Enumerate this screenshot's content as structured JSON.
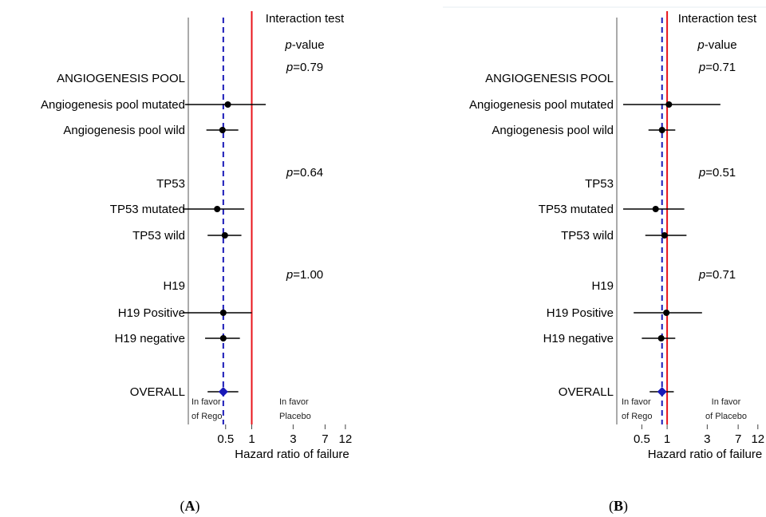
{
  "header": {
    "interaction_test": "Interaction test",
    "p_value_italic": "p",
    "p_value_suffix": "-value"
  },
  "x_axis": {
    "label": "Hazard ratio of failure",
    "ticks": [
      "0.5",
      "1",
      "3",
      "7",
      "12"
    ]
  },
  "notes": {
    "favor_rego": [
      "In favor",
      "of Rego"
    ],
    "favor_placebo_A": [
      "In favor",
      "Placebo"
    ],
    "favor_placebo_B": [
      "In favor",
      "of Placebo"
    ]
  },
  "colors": {
    "reference_line": "#e8141b",
    "overall_line": "#1a1ab8",
    "overall_marker": "#1a1ab8",
    "point": "#000000"
  },
  "chart_data": [
    {
      "type": "forest",
      "panel": "(A)",
      "panel_letter": "A",
      "xlabel": "Hazard ratio of failure",
      "x_scale": "log",
      "x_ticks": [
        0.5,
        1,
        3,
        7,
        12
      ],
      "reference_value": 1,
      "overall_reference": 0.47,
      "rows": [
        {
          "label": "ANGIOGENESIS POOL",
          "kind": "header",
          "p_value": "=0.79"
        },
        {
          "label": "Angiogenesis pool mutated",
          "kind": "estimate",
          "hr": 0.53,
          "lo": 0.17,
          "hi": 1.45
        },
        {
          "label": "Angiogenesis pool wild",
          "kind": "estimate",
          "hr": 0.46,
          "lo": 0.3,
          "hi": 0.7
        },
        {
          "label": "TP53",
          "kind": "header",
          "p_value": "=0.64"
        },
        {
          "label": "TP53 mutated",
          "kind": "estimate",
          "hr": 0.4,
          "lo": 0.16,
          "hi": 0.82
        },
        {
          "label": "TP53 wild",
          "kind": "estimate",
          "hr": 0.49,
          "lo": 0.31,
          "hi": 0.76
        },
        {
          "label": "H19",
          "kind": "header",
          "p_value": "=1.00"
        },
        {
          "label": "H19 Positive",
          "kind": "estimate",
          "hr": 0.47,
          "lo": 0.16,
          "hi": 1.0
        },
        {
          "label": "H19 negative",
          "kind": "estimate",
          "hr": 0.47,
          "lo": 0.29,
          "hi": 0.73
        },
        {
          "label": "OVERALL",
          "kind": "overall",
          "hr": 0.47,
          "lo": 0.31,
          "hi": 0.7
        }
      ]
    },
    {
      "type": "forest",
      "panel": "(B)",
      "panel_letter": "B",
      "xlabel": "Hazard ratio of failure",
      "x_scale": "log",
      "x_ticks": [
        0.5,
        1,
        3,
        7,
        12
      ],
      "reference_value": 1,
      "overall_reference": 0.87,
      "rows": [
        {
          "label": "ANGIOGENESIS POOL",
          "kind": "header",
          "p_value": "=0.71"
        },
        {
          "label": "Angiogenesis pool mutated",
          "kind": "estimate",
          "hr": 1.05,
          "lo": 0.3,
          "hi": 4.3
        },
        {
          "label": "Angiogenesis pool wild",
          "kind": "estimate",
          "hr": 0.87,
          "lo": 0.6,
          "hi": 1.25
        },
        {
          "label": "TP53",
          "kind": "header",
          "p_value": "=0.51"
        },
        {
          "label": "TP53 mutated",
          "kind": "estimate",
          "hr": 0.73,
          "lo": 0.3,
          "hi": 1.6
        },
        {
          "label": "TP53 wild",
          "kind": "estimate",
          "hr": 0.93,
          "lo": 0.55,
          "hi": 1.7
        },
        {
          "label": "H19",
          "kind": "header",
          "p_value": "=0.71"
        },
        {
          "label": "H19 Positive",
          "kind": "estimate",
          "hr": 0.98,
          "lo": 0.4,
          "hi": 2.6
        },
        {
          "label": "H19 negative",
          "kind": "estimate",
          "hr": 0.85,
          "lo": 0.5,
          "hi": 1.25
        },
        {
          "label": "OVERALL",
          "kind": "overall",
          "hr": 0.87,
          "lo": 0.62,
          "hi": 1.2
        }
      ]
    }
  ]
}
